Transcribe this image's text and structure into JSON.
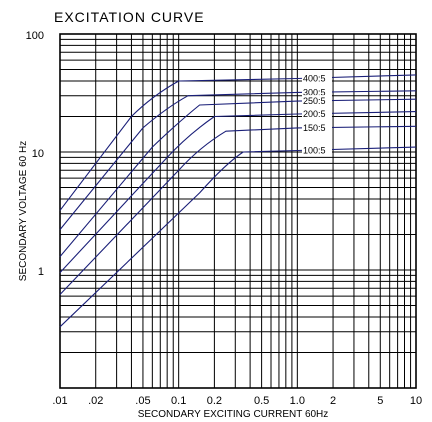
{
  "chart_data": {
    "type": "line",
    "title": "EXCITATION CURVE",
    "xlabel": "SECONDARY EXCITING CURRENT 60Hz",
    "ylabel": "SECONDARY VOLTAGE 60 Hz",
    "x_scale": "log",
    "y_scale": "log",
    "xlim": [
      0.01,
      10
    ],
    "ylim": [
      0.1,
      100
    ],
    "grid": true,
    "x_ticks": [
      {
        "value": 0.01,
        "label": ".01"
      },
      {
        "value": 0.02,
        "label": ".02"
      },
      {
        "value": 0.05,
        "label": ".05"
      },
      {
        "value": 0.1,
        "label": "0.1"
      },
      {
        "value": 0.2,
        "label": "0.2"
      },
      {
        "value": 0.5,
        "label": "0.5"
      },
      {
        "value": 1,
        "label": "1.0"
      },
      {
        "value": 2,
        "label": "2"
      },
      {
        "value": 5,
        "label": "5"
      },
      {
        "value": 10,
        "label": "10"
      }
    ],
    "y_ticks": [
      {
        "value": 1,
        "label": "1"
      },
      {
        "value": 10,
        "label": "10"
      },
      {
        "value": 100,
        "label": "100"
      }
    ],
    "series": [
      {
        "name": "400:5",
        "points": [
          [
            0.01,
            3.2
          ],
          [
            0.04,
            20
          ],
          [
            0.06,
            30
          ],
          [
            0.1,
            40
          ],
          [
            1,
            42
          ],
          [
            10,
            45
          ]
        ]
      },
      {
        "name": "300:5",
        "points": [
          [
            0.01,
            2.2
          ],
          [
            0.05,
            16
          ],
          [
            0.08,
            24
          ],
          [
            0.12,
            30
          ],
          [
            1,
            32
          ],
          [
            10,
            33
          ]
        ]
      },
      {
        "name": "250:5",
        "points": [
          [
            0.01,
            1.3
          ],
          [
            0.06,
            11
          ],
          [
            0.1,
            18
          ],
          [
            0.15,
            25
          ],
          [
            1,
            27
          ],
          [
            10,
            28
          ]
        ]
      },
      {
        "name": "200:5",
        "points": [
          [
            0.01,
            0.95
          ],
          [
            0.08,
            9
          ],
          [
            0.12,
            14
          ],
          [
            0.2,
            20
          ],
          [
            1,
            21
          ],
          [
            10,
            22
          ]
        ]
      },
      {
        "name": "150:5",
        "points": [
          [
            0.01,
            0.62
          ],
          [
            0.1,
            7
          ],
          [
            0.15,
            11
          ],
          [
            0.25,
            15
          ],
          [
            1,
            16
          ],
          [
            10,
            16.5
          ]
        ]
      },
      {
        "name": "100:5",
        "points": [
          [
            0.01,
            0.33
          ],
          [
            0.15,
            4.5
          ],
          [
            0.25,
            8
          ],
          [
            0.35,
            10
          ],
          [
            1,
            10.3
          ],
          [
            10,
            11
          ]
        ]
      }
    ],
    "colors": {
      "curve": "#1a1f78",
      "grid": "#000000"
    }
  }
}
